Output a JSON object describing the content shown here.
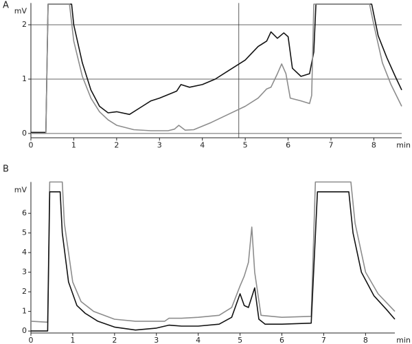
{
  "chart_data": [
    {
      "type": "line",
      "label": "A",
      "y_label": "mV",
      "x_label": "min",
      "xlim": [
        0,
        8.65
      ],
      "ylim": [
        -0.08,
        2.4
      ],
      "xticks": [
        0,
        1,
        2,
        3,
        4,
        5,
        6,
        7,
        8
      ],
      "yticks": [
        0,
        1,
        2
      ],
      "grid": true,
      "vline": 4.85,
      "series": [
        {
          "color": "#111111",
          "x": [
            0,
            0.35,
            0.4,
            0.95,
            1.0,
            1.2,
            1.4,
            1.6,
            1.8,
            2.0,
            2.3,
            2.6,
            2.8,
            3.0,
            3.4,
            3.5,
            3.7,
            4.0,
            4.3,
            4.6,
            5.0,
            5.3,
            5.5,
            5.6,
            5.75,
            5.9,
            6.0,
            6.1,
            6.3,
            6.5,
            6.6,
            6.65,
            7.95,
            8.1,
            8.3,
            8.5,
            8.65
          ],
          "values": [
            0.02,
            0.02,
            2.38,
            2.38,
            2.0,
            1.3,
            0.8,
            0.5,
            0.38,
            0.4,
            0.35,
            0.5,
            0.6,
            0.65,
            0.78,
            0.9,
            0.85,
            0.9,
            1.0,
            1.15,
            1.35,
            1.6,
            1.7,
            1.87,
            1.75,
            1.85,
            1.78,
            1.2,
            1.05,
            1.1,
            1.5,
            2.38,
            2.38,
            1.8,
            1.4,
            1.05,
            0.8
          ]
        },
        {
          "color": "#8c8c8c",
          "x": [
            0,
            0.35,
            0.4,
            0.9,
            1.0,
            1.2,
            1.4,
            1.6,
            1.8,
            2.0,
            2.4,
            2.8,
            3.2,
            3.35,
            3.45,
            3.6,
            3.8,
            4.2,
            4.6,
            5.0,
            5.3,
            5.5,
            5.6,
            5.75,
            5.85,
            5.95,
            6.05,
            6.3,
            6.5,
            6.55,
            6.6,
            7.9,
            8.0,
            8.2,
            8.4,
            8.65
          ],
          "values": [
            0,
            0,
            2.38,
            2.38,
            1.7,
            1.05,
            0.65,
            0.4,
            0.25,
            0.15,
            0.07,
            0.05,
            0.05,
            0.08,
            0.15,
            0.06,
            0.07,
            0.2,
            0.35,
            0.5,
            0.65,
            0.82,
            0.85,
            1.1,
            1.28,
            1.1,
            0.65,
            0.6,
            0.55,
            0.7,
            2.38,
            2.38,
            2.0,
            1.3,
            0.9,
            0.5
          ]
        }
      ]
    },
    {
      "type": "line",
      "label": "B",
      "y_label": "mV",
      "x_label": "min",
      "xlim": [
        0,
        8.7
      ],
      "ylim": [
        -0.1,
        7.6
      ],
      "xticks": [
        0,
        1,
        2,
        3,
        4,
        5,
        6,
        7,
        8
      ],
      "yticks": [
        0,
        1,
        2,
        3,
        4,
        5,
        6
      ],
      "grid": false,
      "series": [
        {
          "color": "#8c8c8c",
          "x": [
            0,
            0.4,
            0.45,
            0.75,
            0.8,
            1.0,
            1.2,
            1.5,
            2.0,
            2.5,
            3.2,
            3.3,
            3.6,
            4.0,
            4.5,
            4.8,
            5.0,
            5.1,
            5.2,
            5.28,
            5.35,
            5.5,
            6.0,
            6.7,
            6.8,
            7.65,
            7.75,
            8.0,
            8.3,
            8.7
          ],
          "values": [
            0.5,
            0.45,
            7.6,
            7.6,
            5.5,
            2.5,
            1.5,
            1.0,
            0.6,
            0.5,
            0.5,
            0.65,
            0.65,
            0.7,
            0.8,
            1.2,
            2.3,
            2.8,
            3.5,
            5.3,
            3.0,
            0.8,
            0.7,
            0.75,
            7.6,
            7.6,
            5.5,
            3.0,
            1.9,
            1.0
          ]
        },
        {
          "color": "#111111",
          "x": [
            0,
            0.4,
            0.45,
            0.7,
            0.75,
            0.9,
            1.1,
            1.3,
            1.6,
            2.0,
            2.5,
            3.0,
            3.3,
            3.6,
            4.0,
            4.5,
            4.8,
            5.0,
            5.1,
            5.2,
            5.35,
            5.45,
            5.6,
            6.0,
            6.7,
            6.85,
            7.6,
            7.7,
            7.9,
            8.2,
            8.5,
            8.7
          ],
          "values": [
            0,
            0,
            7.1,
            7.1,
            5.0,
            2.5,
            1.3,
            0.9,
            0.5,
            0.2,
            0.05,
            0.15,
            0.3,
            0.25,
            0.25,
            0.35,
            0.7,
            1.9,
            1.3,
            1.2,
            2.2,
            0.6,
            0.35,
            0.35,
            0.4,
            7.1,
            7.1,
            5.0,
            3.0,
            1.8,
            1.1,
            0.6
          ]
        }
      ]
    }
  ]
}
